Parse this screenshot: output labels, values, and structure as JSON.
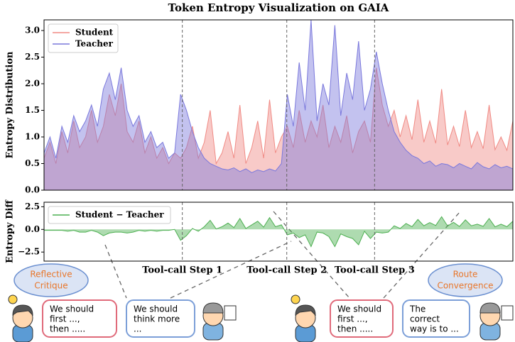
{
  "chart_data": [
    {
      "type": "area",
      "title": "Token Entropy Visualization on GAIA",
      "ylabel": "Entropy Distribution",
      "x": [
        0,
        1,
        2,
        3,
        4,
        5,
        6,
        7,
        8,
        9,
        10,
        11,
        12,
        13,
        14,
        15,
        16,
        17,
        18,
        19,
        20,
        21,
        22,
        23,
        24,
        25,
        26,
        27,
        28,
        29,
        30,
        31,
        32,
        33,
        34,
        35,
        36,
        37,
        38,
        39,
        40,
        41,
        42,
        43,
        44,
        45,
        46,
        47,
        48,
        49,
        50,
        51,
        52,
        53,
        54,
        55,
        56,
        57,
        58,
        59,
        60,
        61,
        62,
        63,
        64,
        65,
        66,
        67,
        68,
        69,
        70,
        71,
        72,
        73,
        74,
        75,
        76,
        77,
        78,
        79
      ],
      "xlim": [
        0,
        79
      ],
      "ylim": [
        0,
        3.2
      ],
      "yticks": [
        {
          "value": 0,
          "label": "0.0"
        },
        {
          "value": 0.5,
          "label": "0.5"
        },
        {
          "value": 1,
          "label": "1.0"
        },
        {
          "value": 1.5,
          "label": "1.5"
        },
        {
          "value": 2,
          "label": "2.0"
        },
        {
          "value": 2.5,
          "label": "2.5"
        },
        {
          "value": 3,
          "label": "3.0"
        }
      ],
      "legend": "upper left",
      "series": [
        {
          "name": "Student",
          "color": "#f08a84",
          "values": [
            0.6,
            0.9,
            0.5,
            1.1,
            0.7,
            1.3,
            0.8,
            1.0,
            1.5,
            0.9,
            1.2,
            1.8,
            1.4,
            2.0,
            1.1,
            0.9,
            1.3,
            0.7,
            1.0,
            0.6,
            0.8,
            0.5,
            0.7,
            0.6,
            0.8,
            1.2,
            0.6,
            0.9,
            1.5,
            0.5,
            0.7,
            1.1,
            0.6,
            1.6,
            0.5,
            0.8,
            1.3,
            0.6,
            1.7,
            0.7,
            1.0,
            1.2,
            0.8,
            1.5,
            0.9,
            1.3,
            1.0,
            1.6,
            0.8,
            1.2,
            0.9,
            1.4,
            0.7,
            1.1,
            1.3,
            0.9,
            2.3,
            1.6,
            1.2,
            1.5,
            1.0,
            1.4,
            0.95,
            1.7,
            0.9,
            1.3,
            0.88,
            1.9,
            0.85,
            1.2,
            0.82,
            1.5,
            0.8,
            1.1,
            0.78,
            1.6,
            0.76,
            1.0,
            0.75,
            1.3
          ]
        },
        {
          "name": "Teacher",
          "color": "#7a78dc",
          "values": [
            0.7,
            1.0,
            0.6,
            1.2,
            0.9,
            1.4,
            1.1,
            1.3,
            1.6,
            1.2,
            1.9,
            2.2,
            1.7,
            2.3,
            1.5,
            1.2,
            1.4,
            0.9,
            1.1,
            0.8,
            0.9,
            0.6,
            0.7,
            1.8,
            1.5,
            1.1,
            0.8,
            0.6,
            0.5,
            0.45,
            0.4,
            0.38,
            0.42,
            0.35,
            0.4,
            0.33,
            0.38,
            0.35,
            0.4,
            0.36,
            0.5,
            1.8,
            1.2,
            2.4,
            1.5,
            3.2,
            1.3,
            2.0,
            1.6,
            3.1,
            1.4,
            2.2,
            1.7,
            2.8,
            1.5,
            1.9,
            2.6,
            2.0,
            1.5,
            1.1,
            0.9,
            0.75,
            0.65,
            0.6,
            0.5,
            0.55,
            0.45,
            0.5,
            0.48,
            0.42,
            0.5,
            0.45,
            0.4,
            0.52,
            0.44,
            0.4,
            0.48,
            0.42,
            0.45,
            0.4
          ]
        }
      ]
    },
    {
      "type": "area",
      "ylabel": "Entropy Diff",
      "x": [
        0,
        1,
        2,
        3,
        4,
        5,
        6,
        7,
        8,
        9,
        10,
        11,
        12,
        13,
        14,
        15,
        16,
        17,
        18,
        19,
        20,
        21,
        22,
        23,
        24,
        25,
        26,
        27,
        28,
        29,
        30,
        31,
        32,
        33,
        34,
        35,
        36,
        37,
        38,
        39,
        40,
        41,
        42,
        43,
        44,
        45,
        46,
        47,
        48,
        49,
        50,
        51,
        52,
        53,
        54,
        55,
        56,
        57,
        58,
        59,
        60,
        61,
        62,
        63,
        64,
        65,
        66,
        67,
        68,
        69,
        70,
        71,
        72,
        73,
        74,
        75,
        76,
        77,
        78,
        79
      ],
      "xlim": [
        0,
        79
      ],
      "ylim": [
        -3.5,
        3.0
      ],
      "yticks": [
        {
          "value": -2.5,
          "label": "−2.5"
        },
        {
          "value": 0,
          "label": "0.0"
        },
        {
          "value": 2.5,
          "label": "2.5"
        }
      ],
      "legend": "upper left",
      "series": [
        {
          "name": "Student − Teacher",
          "color": "#4caf50",
          "values": [
            -0.1,
            -0.1,
            -0.1,
            -0.1,
            -0.2,
            -0.1,
            -0.3,
            -0.3,
            -0.1,
            -0.3,
            -0.7,
            -0.4,
            -0.3,
            -0.3,
            -0.4,
            -0.3,
            -0.1,
            -0.2,
            -0.1,
            -0.2,
            -0.1,
            -0.1,
            0.0,
            -1.2,
            -0.7,
            0.1,
            -0.2,
            0.3,
            1.0,
            0.05,
            0.3,
            0.7,
            0.2,
            1.2,
            0.1,
            0.5,
            0.9,
            0.25,
            1.3,
            0.3,
            0.5,
            -0.6,
            -0.4,
            -0.9,
            -0.6,
            -1.9,
            -0.3,
            -0.4,
            -0.8,
            -1.9,
            -0.5,
            -0.8,
            -1.0,
            -1.7,
            -0.2,
            -1.0,
            -0.3,
            -0.4,
            -0.3,
            0.4,
            0.1,
            0.65,
            0.3,
            1.1,
            0.4,
            0.75,
            0.43,
            1.4,
            0.37,
            0.78,
            0.32,
            1.05,
            0.4,
            0.58,
            0.34,
            1.2,
            0.28,
            0.58,
            0.3,
            0.9
          ]
        }
      ]
    }
  ],
  "steps": [
    {
      "label": "Tool-call Step 1",
      "x": 23.3
    },
    {
      "label": "Tool-call Step 2",
      "x": 40.9
    },
    {
      "label": "Tool-call Step 3",
      "x": 55.7
    }
  ],
  "illustration": {
    "labels": [
      {
        "lines": [
          "Reflective",
          "Critique"
        ]
      },
      {
        "lines": [
          "Route",
          "Convergence"
        ]
      }
    ],
    "bubbles": [
      {
        "lines": [
          "We should",
          "first ...,",
          "then ....."
        ]
      },
      {
        "lines": [
          "We should",
          "think more",
          "..."
        ]
      },
      {
        "lines": [
          "We should",
          "first ...,",
          "then ....."
        ]
      },
      {
        "lines": [
          "The",
          "correct",
          "way is to ..."
        ]
      }
    ]
  }
}
